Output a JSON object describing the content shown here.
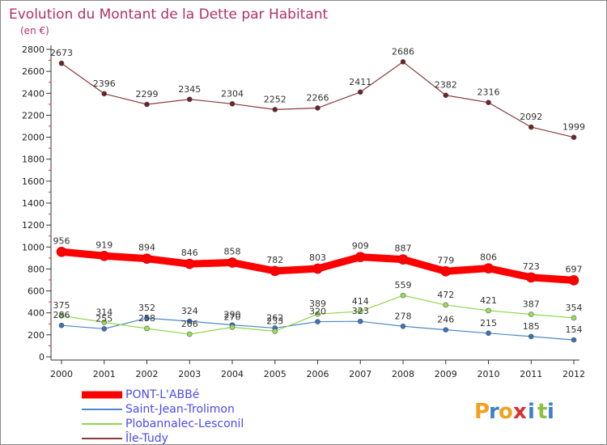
{
  "chart_data": {
    "type": "line",
    "title": "Evolution du Montant de la Dette par Habitant",
    "subtitle": "(en €)",
    "categories": [
      "2000",
      "2001",
      "2002",
      "2003",
      "2004",
      "2005",
      "2006",
      "2007",
      "2008",
      "2009",
      "2010",
      "2011",
      "2012"
    ],
    "ylim": [
      0,
      2800
    ],
    "yticks": [
      0,
      200,
      400,
      600,
      800,
      1000,
      1200,
      1400,
      1600,
      1800,
      2000,
      2200,
      2400,
      2600,
      2800
    ],
    "grid": false,
    "legend_position": "bottom-left",
    "series": [
      {
        "name": "PONT-L'ABBé",
        "color": "#ff0000",
        "values": [
          956,
          919,
          894,
          846,
          858,
          782,
          803,
          909,
          887,
          779,
          806,
          723,
          697
        ]
      },
      {
        "name": "Saint-Jean-Trolimon",
        "color": "#4f87c7",
        "values": [
          286,
          255,
          352,
          324,
          290,
          262,
          320,
          323,
          278,
          246,
          215,
          185,
          154
        ]
      },
      {
        "name": "Plobannalec-Lesconil",
        "color": "#8fd84a",
        "values": [
          375,
          314,
          258,
          206,
          270,
          233,
          389,
          414,
          559,
          472,
          421,
          387,
          354
        ]
      },
      {
        "name": "Île-Tudy",
        "color": "#8b3a3a",
        "values": [
          2673,
          2396,
          2299,
          2345,
          2304,
          2252,
          2266,
          2411,
          2686,
          2382,
          2316,
          2092,
          1999
        ]
      }
    ]
  },
  "logo": {
    "letters": [
      "P",
      "r",
      "o",
      "x",
      "i",
      "t",
      "i"
    ]
  }
}
